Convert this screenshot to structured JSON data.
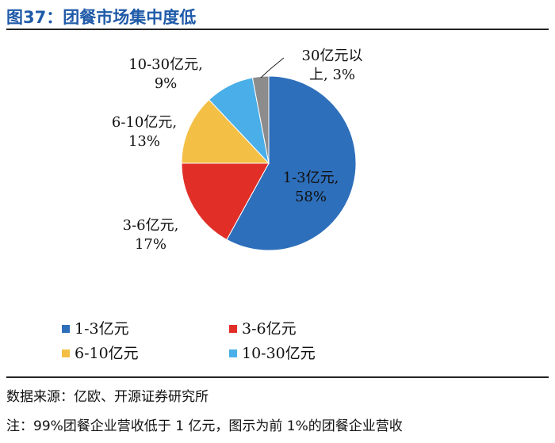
{
  "figure": {
    "title": "图37：团餐市场集中度低"
  },
  "chart_data": {
    "type": "pie",
    "categories": [
      "1-3亿元",
      "3-6亿元",
      "6-10亿元",
      "10-30亿元",
      "30亿元以上"
    ],
    "values": [
      58,
      17,
      13,
      9,
      3
    ],
    "unit": "%",
    "colors": [
      "#2e6fbb",
      "#e12f28",
      "#f4bf45",
      "#4aaee8",
      "#8c8c8c"
    ],
    "slice_labels": [
      [
        "1-3亿元,",
        "58%"
      ],
      [
        "3-6亿元,",
        "17%"
      ],
      [
        "6-10亿元,",
        "13%"
      ],
      [
        "10-30亿元,",
        "9%"
      ],
      [
        "30亿元以",
        "上, 3%"
      ]
    ],
    "legend": {
      "placement": "bottom",
      "entries": [
        "1-3亿元",
        "3-6亿元",
        "6-10亿元",
        "10-30亿元"
      ]
    }
  },
  "footer": {
    "source": "数据来源：亿欧、开源证券研究所",
    "note": "注：99%团餐企业营收低于 1 亿元，图示为前 1%的团餐企业营收"
  }
}
